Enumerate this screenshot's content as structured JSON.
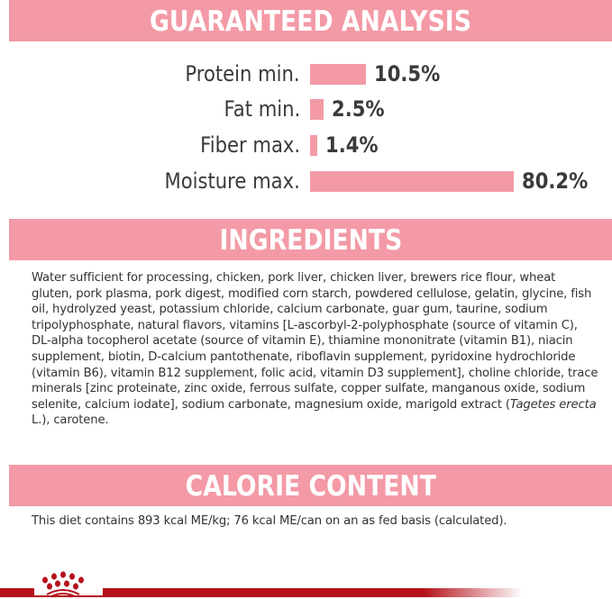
{
  "guaranteed_analysis": {
    "title": "GUARANTEED ANALYSIS",
    "accent": "#f39aa6",
    "items": [
      {
        "label": "Protein min.",
        "value": 10.5,
        "text": "10.5%"
      },
      {
        "label": "Fat min.",
        "value": 2.5,
        "text": "2.5%"
      },
      {
        "label": "Fiber max.",
        "value": 1.4,
        "text": "1.4%"
      },
      {
        "label": "Moisture max.",
        "value": 80.2,
        "text": "80.2%"
      }
    ]
  },
  "ingredients": {
    "title": "INGREDIENTS",
    "text_before": "Water sufficient for processing, chicken, pork liver, chicken liver, brewers rice flour, wheat gluten, pork plasma, pork digest, modified corn starch, powdered cellulose, gelatin, glycine, fish oil, hydrolyzed yeast, potassium chloride, calcium carbonate, guar gum, taurine, sodium tripolyphosphate, natural flavors, vitamins [L-ascorbyl-2-polyphosphate (source of vitamin C), DL-alpha tocopherol acetate (source of vitamin E), thiamine mononitrate (vitamin B1), niacin supplement, biotin, D-calcium pantothenate, riboflavin supplement, pyridoxine hydrochloride (vitamin B6), vitamin B12 supplement, folic acid, vitamin D3 supplement], choline chloride, trace minerals [zinc proteinate, zinc oxide, ferrous sulfate, copper sulfate, manganous oxide, sodium selenite, calcium iodate], sodium carbonate, magnesium oxide, marigold extract (",
    "text_italic": "Tagetes erecta",
    "text_after": " L.), carotene."
  },
  "calorie_content": {
    "title": "CALORIE CONTENT",
    "text": "This diet contains 893 kcal ME/kg; 76 kcal ME/can on an as fed basis (calculated)."
  },
  "footer": {
    "logo": "royal-canin-crown-icon",
    "line_color": "#b5121b"
  }
}
